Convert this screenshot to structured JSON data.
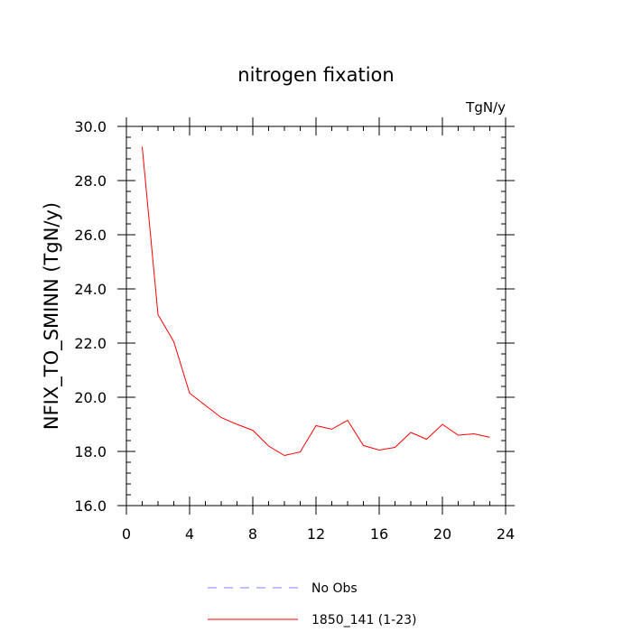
{
  "chart_data": {
    "type": "line",
    "title": "nitrogen fixation",
    "units_label": "TgN/y",
    "xlabel": "",
    "ylabel": "NFIX_TO_SMINN  (TgN/y)",
    "xlim": [
      0,
      24
    ],
    "ylim": [
      16,
      30
    ],
    "x_ticks": [
      0,
      4,
      8,
      12,
      16,
      20,
      24
    ],
    "x_tick_labels": [
      "0",
      "4",
      "8",
      "12",
      "16",
      "20",
      "24"
    ],
    "y_ticks": [
      16,
      18,
      20,
      22,
      24,
      26,
      28,
      30
    ],
    "y_tick_labels": [
      "16.0",
      "18.0",
      "20.0",
      "22.0",
      "24.0",
      "26.0",
      "28.0",
      "30.0"
    ],
    "grid": false,
    "legend_position": "bottom-center",
    "series": [
      {
        "name": "1850_141 (1-23)",
        "color": "#ff0000",
        "style": "solid",
        "x": [
          1,
          2,
          3,
          4,
          5,
          6,
          7,
          8,
          9,
          10,
          11,
          12,
          13,
          14,
          15,
          16,
          17,
          18,
          19,
          20,
          21,
          22,
          23
        ],
        "values": [
          29.25,
          23.05,
          22.05,
          20.15,
          19.7,
          19.25,
          19.0,
          18.78,
          18.2,
          17.85,
          17.98,
          18.95,
          18.82,
          19.15,
          18.22,
          18.05,
          18.15,
          18.7,
          18.45,
          19.0,
          18.6,
          18.65,
          18.52
        ]
      }
    ],
    "legend": [
      {
        "label": "No Obs",
        "color": "#8080ff",
        "style": "dashed"
      },
      {
        "label": "1850_141 (1-23)",
        "color": "#ff0000",
        "style": "solid"
      }
    ]
  }
}
